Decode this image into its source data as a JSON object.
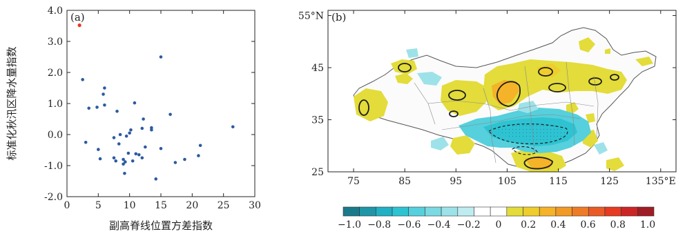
{
  "chart_data": [
    {
      "type": "scatter",
      "panel_label": "(a)",
      "xlabel": "副高脊线位置方差指数",
      "ylabel": "标准化秋汛区降水量指数",
      "xlim": [
        0,
        30
      ],
      "ylim": [
        -2.0,
        4.0
      ],
      "x_ticks": [
        "0",
        "5",
        "10",
        "15",
        "20",
        "25",
        "30"
      ],
      "y_ticks": [
        "-2.0",
        "-1.0",
        "0.0",
        "1.0",
        "2.0",
        "3.0",
        "4.0"
      ],
      "point_color": "#2c5aa0",
      "highlight_color": "#e8371f",
      "highlight": {
        "x": 2.0,
        "y": 3.52
      },
      "points": [
        {
          "x": 2.5,
          "y": 1.77
        },
        {
          "x": 3.0,
          "y": -0.25
        },
        {
          "x": 3.5,
          "y": 0.85
        },
        {
          "x": 4.8,
          "y": 0.88
        },
        {
          "x": 5.0,
          "y": -0.48
        },
        {
          "x": 5.3,
          "y": -0.78
        },
        {
          "x": 5.8,
          "y": 1.3
        },
        {
          "x": 6.0,
          "y": 1.5
        },
        {
          "x": 6.0,
          "y": 0.95
        },
        {
          "x": 7.5,
          "y": -0.1
        },
        {
          "x": 7.5,
          "y": -0.75
        },
        {
          "x": 7.8,
          "y": -0.85
        },
        {
          "x": 8.0,
          "y": 0.75
        },
        {
          "x": 8.3,
          "y": -0.3
        },
        {
          "x": 8.5,
          "y": 0.0
        },
        {
          "x": 9.0,
          "y": -0.8
        },
        {
          "x": 9.0,
          "y": -0.95
        },
        {
          "x": 9.2,
          "y": -1.25
        },
        {
          "x": 9.3,
          "y": -0.88
        },
        {
          "x": 9.5,
          "y": -0.05
        },
        {
          "x": 9.8,
          "y": -0.6
        },
        {
          "x": 10.0,
          "y": 0.05
        },
        {
          "x": 10.2,
          "y": 0.15
        },
        {
          "x": 10.5,
          "y": -0.85
        },
        {
          "x": 10.8,
          "y": 1.02
        },
        {
          "x": 11.0,
          "y": -0.62
        },
        {
          "x": 11.5,
          "y": -0.65
        },
        {
          "x": 12.0,
          "y": 0.2
        },
        {
          "x": 12.0,
          "y": -0.75
        },
        {
          "x": 12.2,
          "y": 0.5
        },
        {
          "x": 12.5,
          "y": -0.4
        },
        {
          "x": 13.5,
          "y": 0.22
        },
        {
          "x": 13.5,
          "y": 0.15
        },
        {
          "x": 14.2,
          "y": -1.43
        },
        {
          "x": 15.0,
          "y": 2.5
        },
        {
          "x": 15.0,
          "y": -0.45
        },
        {
          "x": 16.5,
          "y": 0.65
        },
        {
          "x": 17.3,
          "y": -0.9
        },
        {
          "x": 18.8,
          "y": -0.8
        },
        {
          "x": 21.0,
          "y": -0.68
        },
        {
          "x": 21.3,
          "y": -0.35
        },
        {
          "x": 26.5,
          "y": 0.25
        }
      ]
    },
    {
      "type": "map",
      "panel_label": "(b)",
      "lon_ticks": [
        "75",
        "85",
        "95",
        "105",
        "115",
        "125",
        "135°E"
      ],
      "lat_ticks": [
        "55°N",
        "45",
        "35",
        "25"
      ],
      "lon_range": [
        70,
        138
      ],
      "lat_range": [
        25,
        56
      ],
      "colorbar": {
        "tick_labels": [
          "−1.0",
          "−0.8",
          "−0.6",
          "−0.4",
          "−0.2",
          "0",
          "0.2",
          "0.4",
          "0.6",
          "0.8",
          "1.0"
        ],
        "colors": [
          "#1a7a8a",
          "#1f95a8",
          "#22b0c4",
          "#2ec3d2",
          "#55d0dc",
          "#7ad9e2",
          "#9de2e9",
          "#bfecf0",
          "#ffffff",
          "#ffffff",
          "#e3dc3a",
          "#eecd2c",
          "#f4b328",
          "#f29a27",
          "#ee7c27",
          "#ea5a26",
          "#e63a22",
          "#cc2525",
          "#9f1d25"
        ]
      }
    }
  ]
}
